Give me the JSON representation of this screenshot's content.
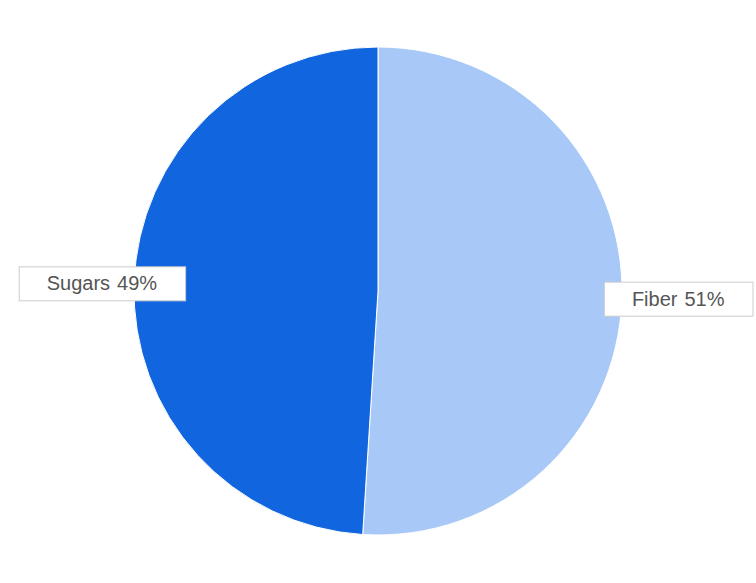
{
  "chart_data": {
    "type": "pie",
    "categories": [
      "Fiber",
      "Sugars"
    ],
    "values": [
      51,
      49
    ],
    "value_labels": [
      "51%",
      "49%"
    ],
    "colors": [
      "#a8c9f8",
      "#1166e0"
    ],
    "data_labels": true
  }
}
